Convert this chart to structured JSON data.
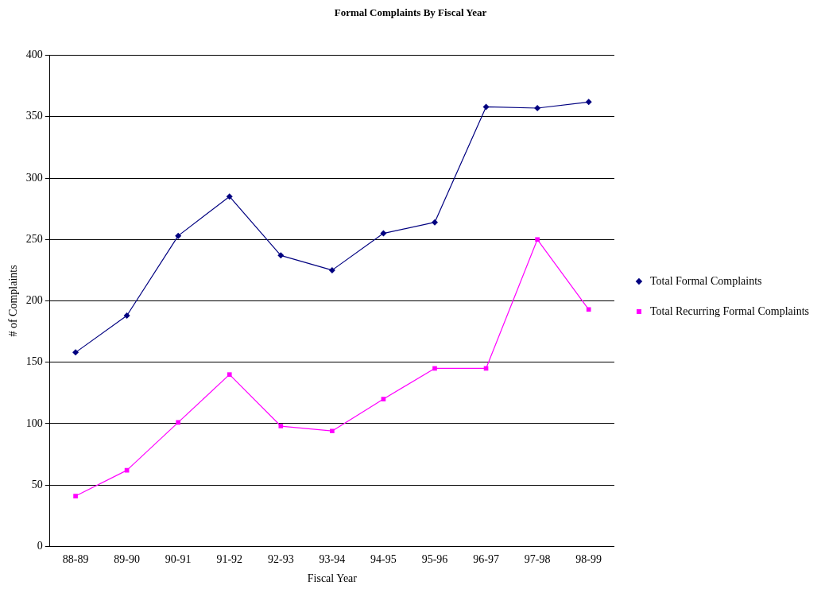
{
  "chart_data": {
    "type": "line",
    "title": "Formal Complaints By Fiscal Year",
    "xlabel": "Fiscal Year",
    "ylabel": "# of Complaints",
    "categories": [
      "88-89",
      "89-90",
      "90-91",
      "91-92",
      "92-93",
      "93-94",
      "94-95",
      "95-96",
      "96-97",
      "97-98",
      "98-99"
    ],
    "series": [
      {
        "name": "Total Formal Complaints",
        "color": "#000080",
        "marker": "diamond",
        "values": [
          158,
          188,
          253,
          285,
          237,
          225,
          255,
          264,
          358,
          357,
          362
        ]
      },
      {
        "name": "Total Recurring Formal Complaints",
        "color": "#ff00ff",
        "marker": "square",
        "values": [
          41,
          62,
          101,
          140,
          98,
          94,
          120,
          145,
          145,
          250,
          193
        ]
      }
    ],
    "ylim": [
      0,
      400
    ],
    "yticks": [
      0,
      50,
      100,
      150,
      200,
      250,
      300,
      350,
      400
    ],
    "grid": "y",
    "legend": "right",
    "line_style": "solid"
  }
}
